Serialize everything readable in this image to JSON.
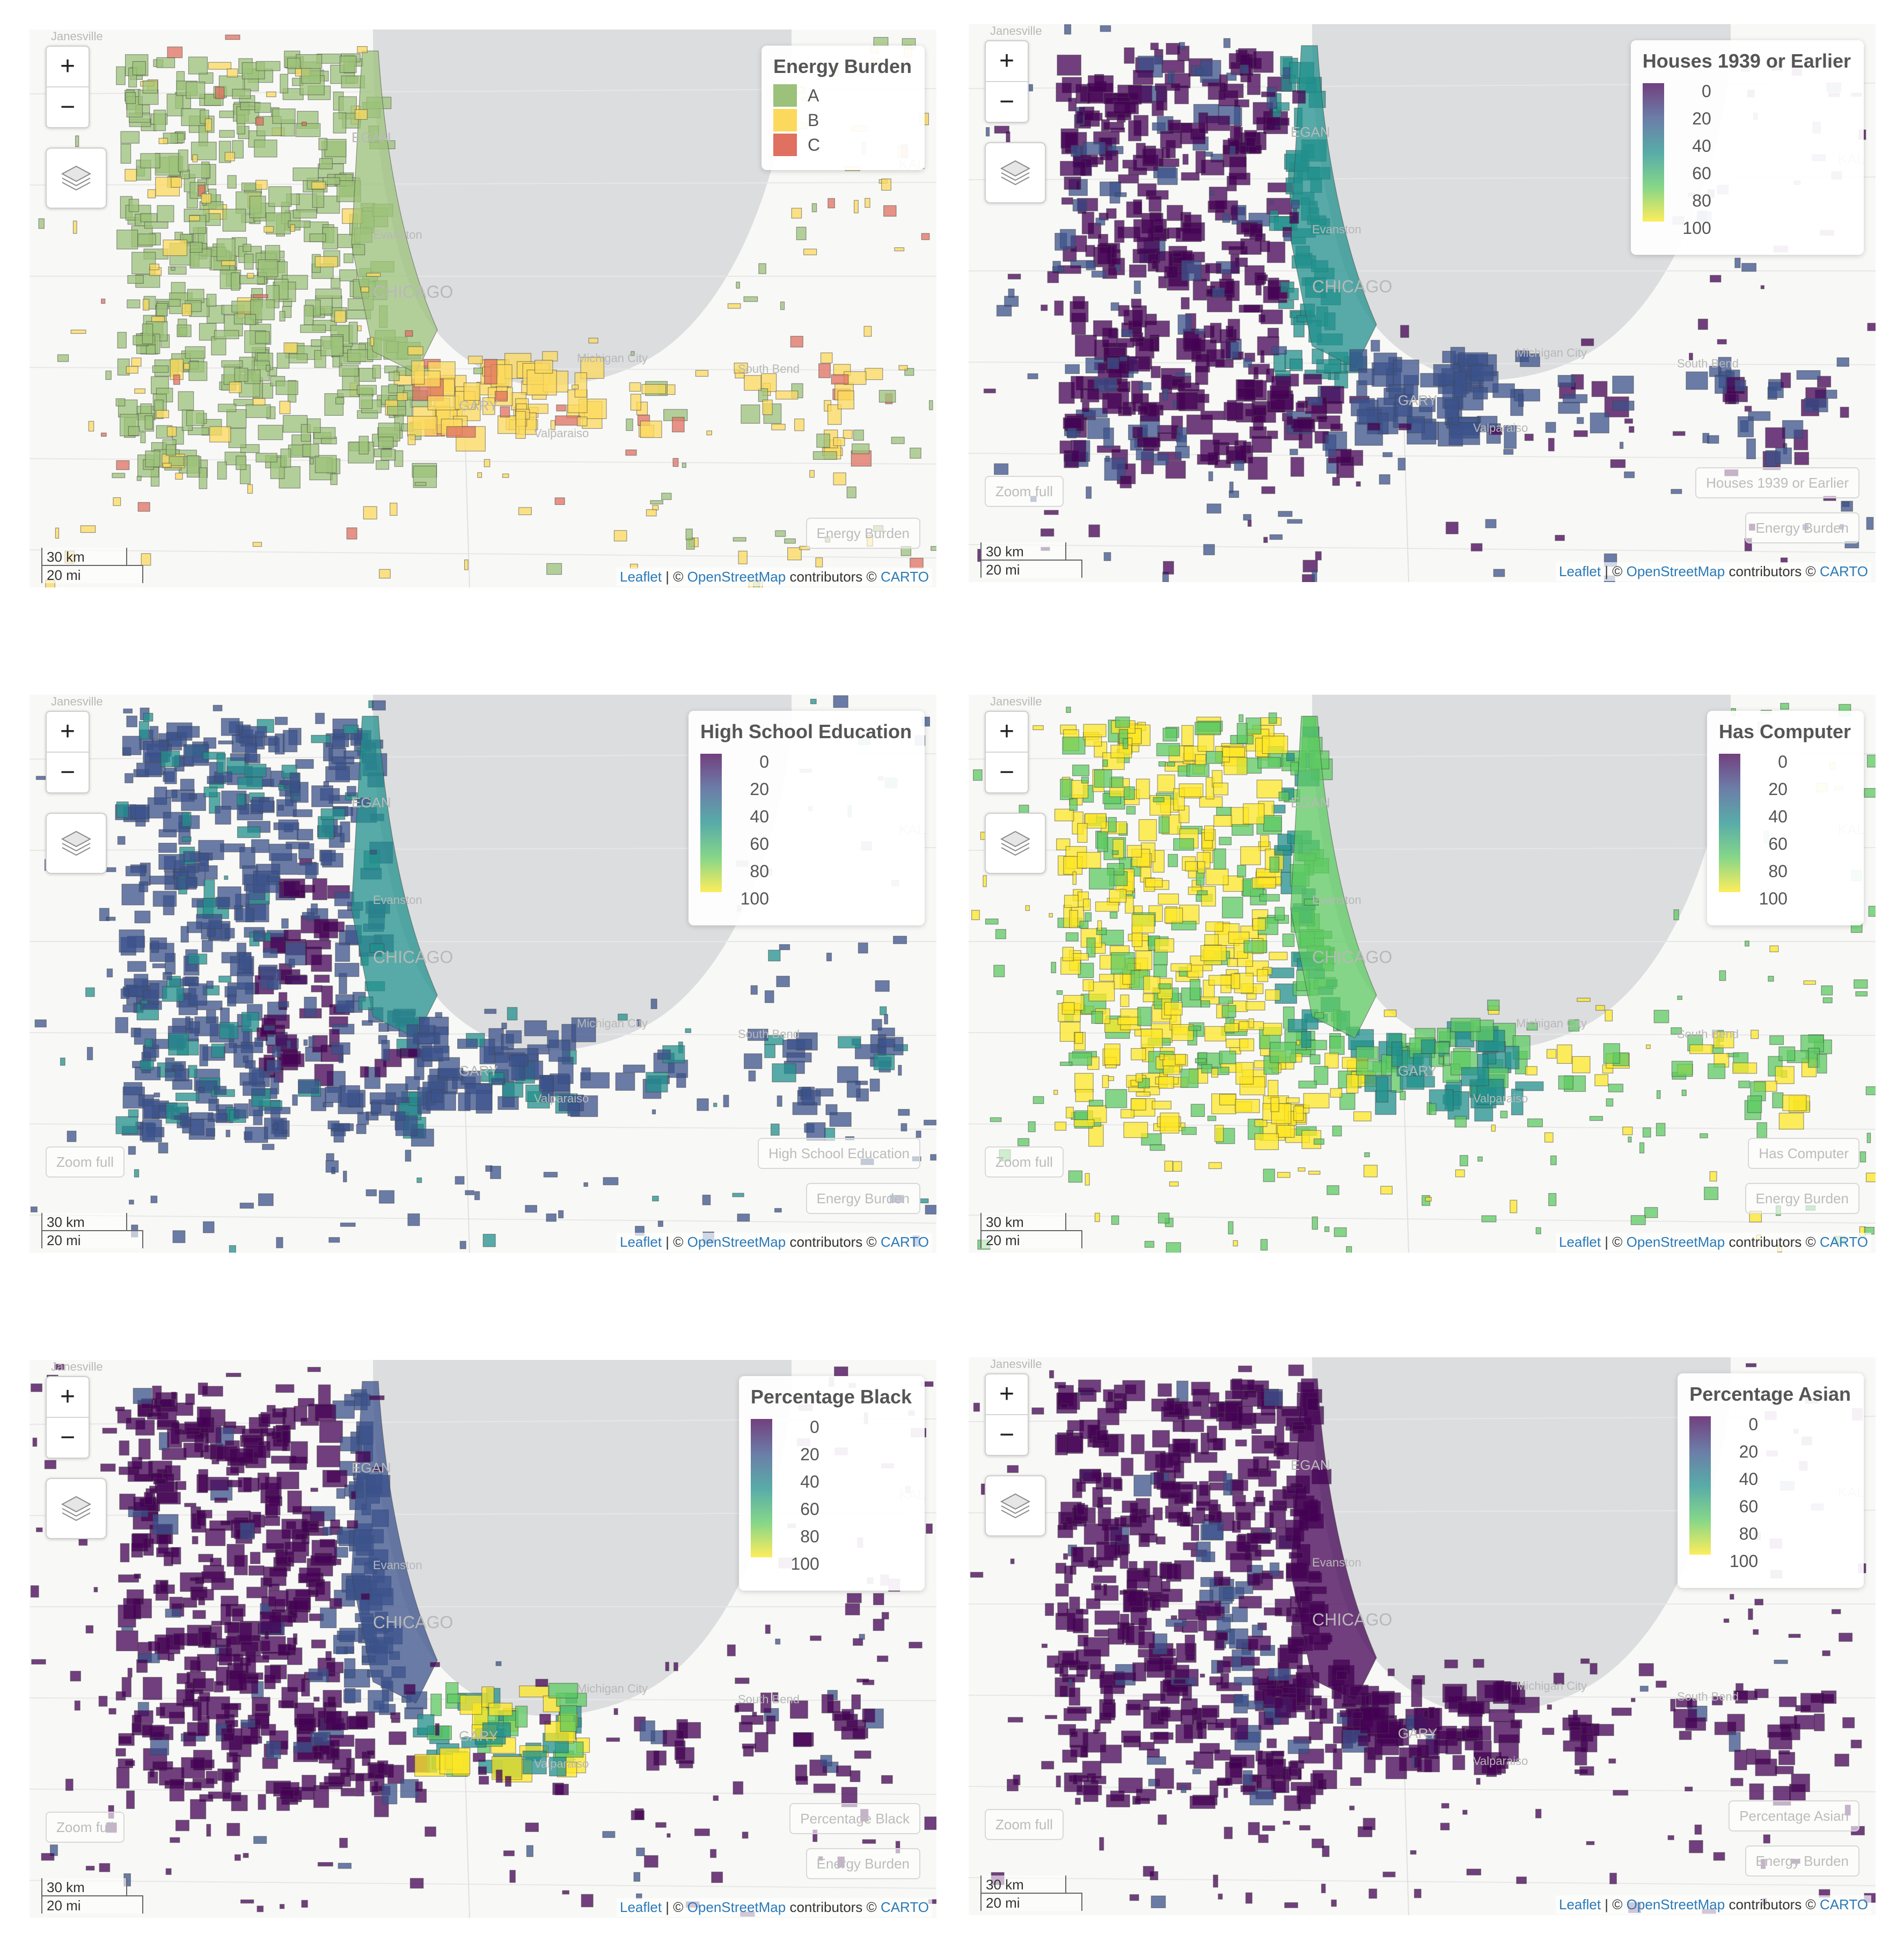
{
  "colors": {
    "water": "#dcdddf",
    "land": "#f8f8f6",
    "energy_A": "#9cc17a",
    "energy_B": "#fcd95c",
    "energy_C": "#e07060",
    "viridis": [
      "#440154",
      "#3b528b",
      "#21908c",
      "#5ec962",
      "#fde725"
    ]
  },
  "controls": {
    "zoom_in": "+",
    "zoom_out": "−",
    "layers_icon": "layers-icon",
    "zoom_full": "Zoom full",
    "scale_km": "30 km",
    "scale_mi": "20 mi"
  },
  "attribution": {
    "leaflet": "Leaflet",
    "sep": "| ©",
    "osm": "OpenStreetMap",
    "contrib": "contributors ©",
    "carto": "CARTO"
  },
  "map_labels": {
    "chicago": "CHICAGO",
    "gary": "GARY",
    "evanston": "Evanston",
    "michigan_city": "Michigan City",
    "south_bend": "South Bend",
    "valparaiso": "Valparaiso",
    "kalamazoo": "KAL",
    "waukegan": "EGAN",
    "janesville": "Janesville"
  },
  "panels": [
    {
      "legend_title": "Energy Burden",
      "legend_type": "categorical",
      "categories": [
        {
          "label": "A",
          "color": "#9cc17a"
        },
        {
          "label": "B",
          "color": "#fcd95c"
        },
        {
          "label": "C",
          "color": "#e07060"
        }
      ],
      "overlay_buttons": [
        "Energy Burden"
      ],
      "show_zoom_full": false,
      "fill_scheme": "energy"
    },
    {
      "legend_title": "Houses 1939 or Earlier",
      "legend_type": "continuous",
      "ticks": [
        "0",
        "20",
        "40",
        "60",
        "80",
        "100"
      ],
      "overlay_buttons": [
        "Houses 1939 or Earlier",
        "Energy Burden"
      ],
      "show_zoom_full": true,
      "fill_scheme": "houses"
    },
    {
      "legend_title": "High School Education",
      "legend_type": "continuous",
      "ticks": [
        "0",
        "20",
        "40",
        "60",
        "80",
        "100"
      ],
      "overlay_buttons": [
        "High School Education",
        "Energy Burden"
      ],
      "show_zoom_full": true,
      "fill_scheme": "hs"
    },
    {
      "legend_title": "Has Computer",
      "legend_type": "continuous",
      "ticks": [
        "0",
        "20",
        "40",
        "60",
        "80",
        "100"
      ],
      "overlay_buttons": [
        "Has Computer",
        "Energy Burden"
      ],
      "show_zoom_full": true,
      "fill_scheme": "computer"
    },
    {
      "legend_title": "Percentage Black",
      "legend_type": "continuous",
      "ticks": [
        "0",
        "20",
        "40",
        "60",
        "80",
        "100"
      ],
      "overlay_buttons": [
        "Percentage Black",
        "Energy Burden"
      ],
      "show_zoom_full": true,
      "fill_scheme": "black"
    },
    {
      "legend_title": "Percentage Asian",
      "legend_type": "continuous",
      "ticks": [
        "0",
        "20",
        "40",
        "60",
        "80",
        "100"
      ],
      "overlay_buttons": [
        "Percentage Asian",
        "Energy Burden"
      ],
      "show_zoom_full": true,
      "fill_scheme": "asian"
    }
  ]
}
